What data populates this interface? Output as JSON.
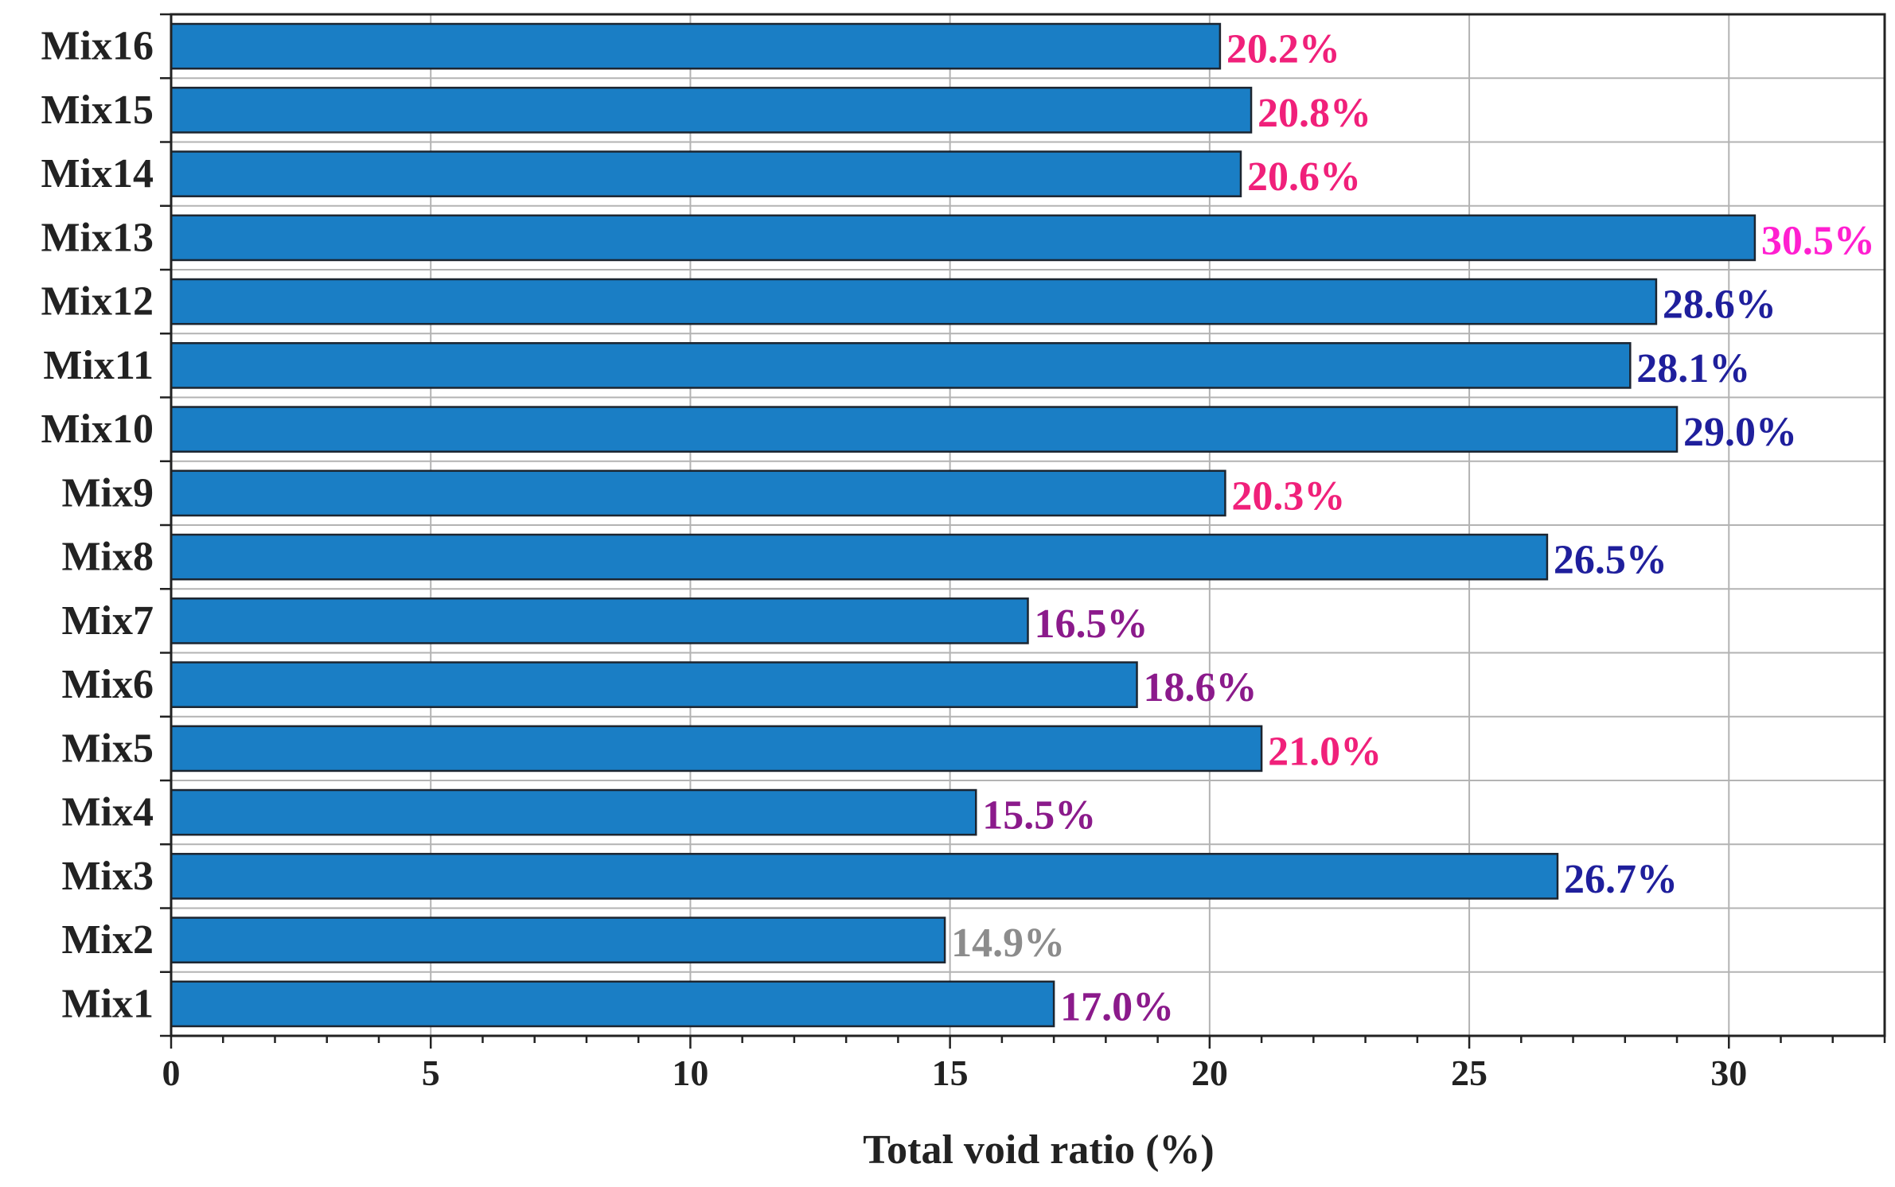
{
  "chart_data": {
    "type": "bar",
    "orientation": "horizontal",
    "title": "",
    "xlabel": "Total void ratio (%)",
    "ylabel": "",
    "xlim": [
      0,
      33
    ],
    "x_ticks": [
      0,
      5,
      10,
      15,
      20,
      25,
      30
    ],
    "x_minor_step": 1,
    "grid": true,
    "bar_color": "#1a7ec5",
    "categories": [
      "Mix1",
      "Mix2",
      "Mix3",
      "Mix4",
      "Mix5",
      "Mix6",
      "Mix7",
      "Mix8",
      "Mix9",
      "Mix10",
      "Mix11",
      "Mix12",
      "Mix13",
      "Mix14",
      "Mix15",
      "Mix16"
    ],
    "values": [
      17.0,
      14.9,
      26.7,
      15.5,
      21.0,
      18.6,
      16.5,
      26.5,
      20.3,
      29.0,
      28.1,
      28.6,
      30.5,
      20.6,
      20.8,
      20.2
    ],
    "data_labels": [
      "17.0%",
      "14.9%",
      "26.7%",
      "15.5%",
      "21.0%",
      "18.6%",
      "16.5%",
      "26.5%",
      "20.3%",
      "29.0%",
      "28.1%",
      "28.6%",
      "30.5%",
      "20.6%",
      "20.8%",
      "20.2%"
    ],
    "label_colors": [
      "#8b1a8b",
      "#8c8c8c",
      "#1f1f9c",
      "#8b1a8b",
      "#f0207a",
      "#8b1a8b",
      "#8b1a8b",
      "#1f1f9c",
      "#f0207a",
      "#1f1f9c",
      "#1f1f9c",
      "#1f1f9c",
      "#ff1fd0",
      "#f0207a",
      "#f0207a",
      "#f0207a"
    ]
  }
}
